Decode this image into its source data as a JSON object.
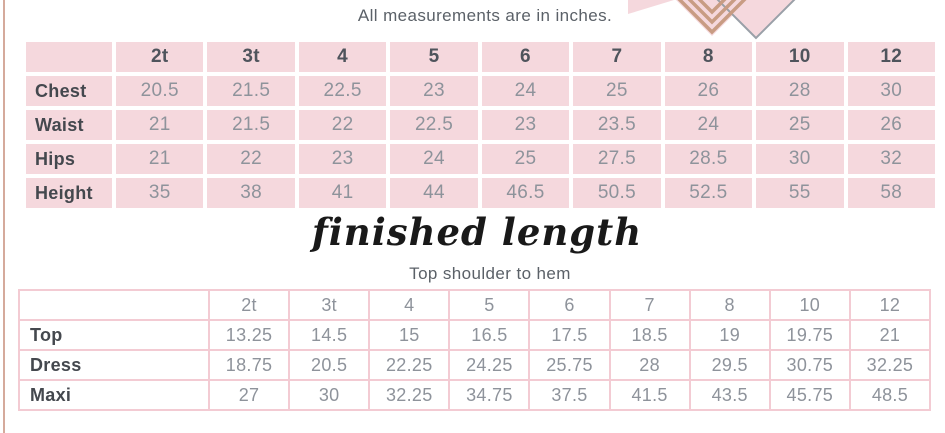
{
  "note": "All measurements are in inches.",
  "finished_length": {
    "heading": "finished length",
    "subheading": "Top shoulder to hem"
  },
  "size_table": {
    "columns": [
      "2t",
      "3t",
      "4",
      "5",
      "6",
      "7",
      "8",
      "10",
      "12"
    ],
    "rows": [
      {
        "label": "Chest",
        "values": [
          "20.5",
          "21.5",
          "22.5",
          "23",
          "24",
          "25",
          "26",
          "28",
          "30"
        ]
      },
      {
        "label": "Waist",
        "values": [
          "21",
          "21.5",
          "22",
          "22.5",
          "23",
          "23.5",
          "24",
          "25",
          "26"
        ]
      },
      {
        "label": "Hips",
        "values": [
          "21",
          "22",
          "23",
          "24",
          "25",
          "27.5",
          "28.5",
          "30",
          "32"
        ]
      },
      {
        "label": "Height",
        "values": [
          "35",
          "38",
          "41",
          "44",
          "46.5",
          "50.5",
          "52.5",
          "55",
          "58"
        ]
      }
    ]
  },
  "length_table": {
    "columns": [
      "2t",
      "3t",
      "4",
      "5",
      "6",
      "7",
      "8",
      "10",
      "12"
    ],
    "rows": [
      {
        "label": "Top",
        "values": [
          "13.25",
          "14.5",
          "15",
          "16.5",
          "17.5",
          "18.5",
          "19",
          "19.75",
          "21"
        ]
      },
      {
        "label": "Dress",
        "values": [
          "18.75",
          "20.5",
          "22.25",
          "24.25",
          "25.75",
          "28",
          "29.5",
          "30.75",
          "32.25"
        ]
      },
      {
        "label": "Maxi",
        "values": [
          "27",
          "30",
          "32.25",
          "34.75",
          "37.5",
          "41.5",
          "43.5",
          "45.75",
          "48.5"
        ]
      }
    ]
  },
  "decoration": {
    "description": "nested tan chevrons overlapping pink diamond, cropped at top edge"
  },
  "colors": {
    "cell_pink": "#f5d8dd",
    "border_pink": "#f3cbd3",
    "accent_tan": "#d5aa9c",
    "chevron_tan": "#c89c83",
    "diamond_stroke": "#9aa0a8",
    "note_text": "#5b6168",
    "label_text": "#44484e",
    "header_text": "#4f545c",
    "value_text": "#8e939b",
    "heading_black": "#191919"
  }
}
